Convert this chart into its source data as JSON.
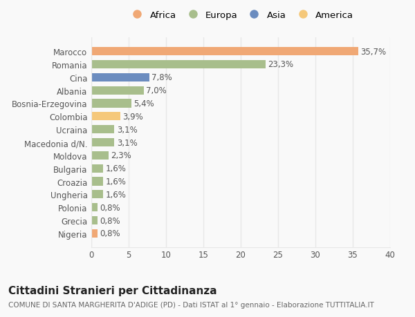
{
  "categories": [
    "Marocco",
    "Romania",
    "Cina",
    "Albania",
    "Bosnia-Erzegovina",
    "Colombia",
    "Ucraina",
    "Macedonia d/N.",
    "Moldova",
    "Bulgaria",
    "Croazia",
    "Ungheria",
    "Polonia",
    "Grecia",
    "Nigeria"
  ],
  "values": [
    35.7,
    23.3,
    7.8,
    7.0,
    5.4,
    3.9,
    3.1,
    3.1,
    2.3,
    1.6,
    1.6,
    1.6,
    0.8,
    0.8,
    0.8
  ],
  "labels": [
    "35,7%",
    "23,3%",
    "7,8%",
    "7,0%",
    "5,4%",
    "3,9%",
    "3,1%",
    "3,1%",
    "2,3%",
    "1,6%",
    "1,6%",
    "1,6%",
    "0,8%",
    "0,8%",
    "0,8%"
  ],
  "bar_colors": [
    "#F0A875",
    "#A8BE8C",
    "#6B8CBF",
    "#A8BE8C",
    "#A8BE8C",
    "#F5C87A",
    "#A8BE8C",
    "#A8BE8C",
    "#A8BE8C",
    "#A8BE8C",
    "#A8BE8C",
    "#A8BE8C",
    "#A8BE8C",
    "#A8BE8C",
    "#F0A875"
  ],
  "continent_colors": {
    "Africa": "#F0A875",
    "Europa": "#A8BE8C",
    "Asia": "#6B8CBF",
    "America": "#F5C87A"
  },
  "legend_order": [
    "Africa",
    "Europa",
    "Asia",
    "America"
  ],
  "title": "Cittadini Stranieri per Cittadinanza",
  "subtitle": "COMUNE DI SANTA MARGHERITA D'ADIGE (PD) - Dati ISTAT al 1° gennaio - Elaborazione TUTTITALIA.IT",
  "xlim": [
    0,
    40
  ],
  "xticks": [
    0,
    5,
    10,
    15,
    20,
    25,
    30,
    35,
    40
  ],
  "background_color": "#f9f9f9",
  "grid_color": "#e8e8e8",
  "bar_height": 0.65,
  "label_fontsize": 8.5,
  "title_fontsize": 11,
  "subtitle_fontsize": 7.5,
  "tick_fontsize": 8.5,
  "legend_fontsize": 9.5
}
